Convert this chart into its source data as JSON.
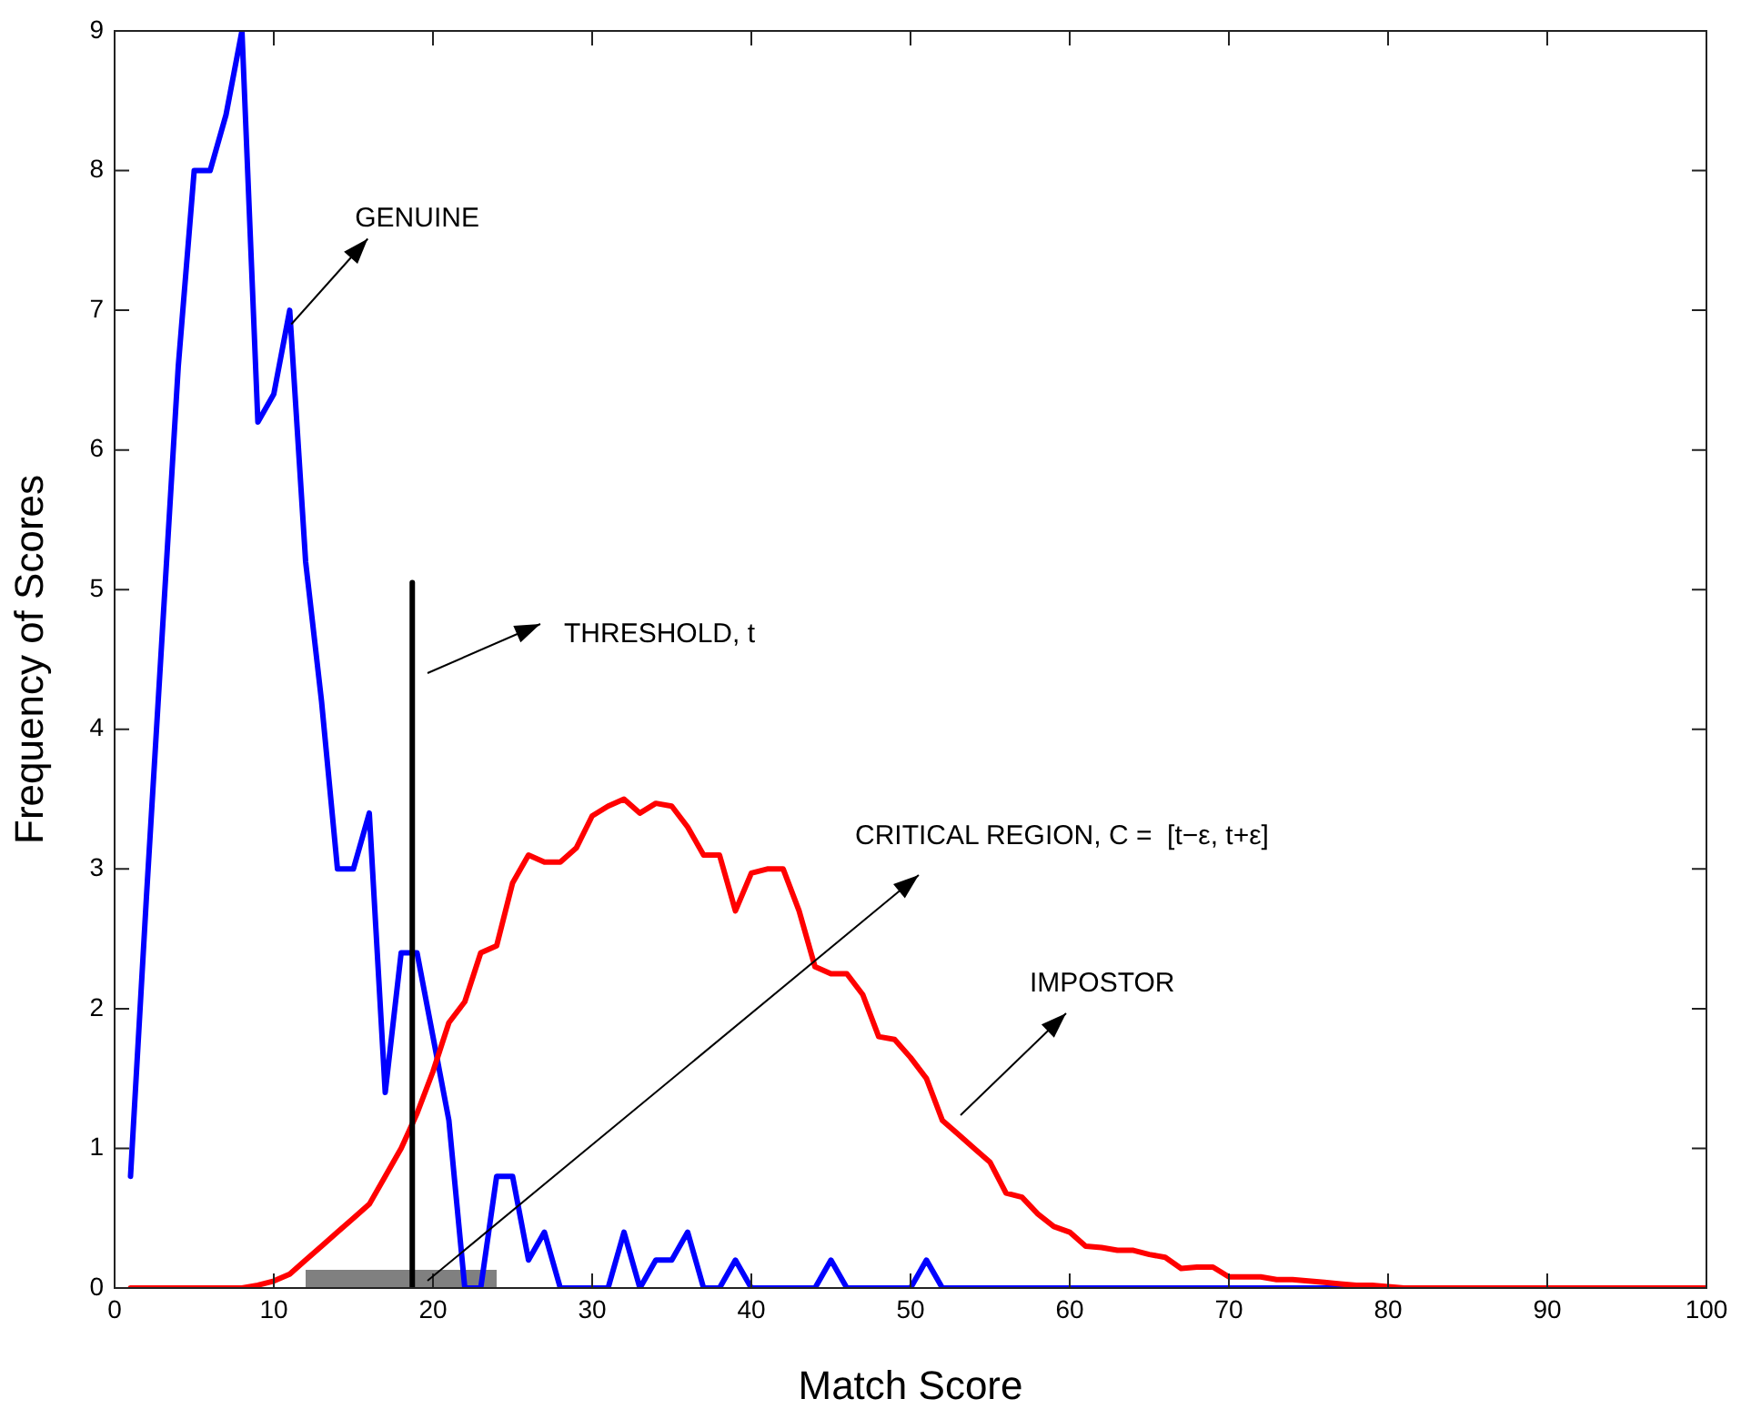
{
  "chart_data": {
    "type": "line",
    "xlabel": "Match Score",
    "ylabel": "Frequency of Scores",
    "xlim": [
      0,
      100
    ],
    "ylim": [
      0,
      9
    ],
    "xticks": [
      0,
      10,
      20,
      30,
      40,
      50,
      60,
      70,
      80,
      90,
      100
    ],
    "yticks": [
      0,
      1,
      2,
      3,
      4,
      5,
      6,
      7,
      8,
      9
    ],
    "grid": false,
    "legend": false,
    "marker": "none",
    "line_style": "solid",
    "x": [
      1,
      2,
      3,
      4,
      5,
      6,
      7,
      8,
      9,
      10,
      11,
      12,
      13,
      14,
      15,
      16,
      17,
      18,
      19,
      20,
      21,
      22,
      23,
      24,
      25,
      26,
      27,
      28,
      29,
      30,
      31,
      32,
      33,
      34,
      35,
      36,
      37,
      38,
      39,
      40,
      41,
      42,
      43,
      44,
      45,
      46,
      47,
      48,
      49,
      50,
      51,
      52,
      53,
      54,
      55,
      56,
      57,
      58,
      59,
      60,
      61,
      62,
      63,
      64,
      65,
      66,
      67,
      68,
      69,
      70,
      71,
      72,
      73,
      74,
      75,
      76,
      77,
      78,
      79,
      80,
      81,
      82,
      83,
      84,
      85,
      86,
      87,
      88,
      89,
      90,
      91,
      92,
      93,
      94,
      95,
      96,
      97,
      98,
      99,
      100
    ],
    "series": [
      {
        "type": "area",
        "color": "#808080",
        "x": [
          12,
          24
        ],
        "values": [
          0.13,
          0.13
        ]
      },
      {
        "color": "#0000ff",
        "values": [
          0.8,
          2.8,
          4.7,
          6.6,
          8,
          8,
          8.4,
          9,
          6.2,
          6.4,
          7,
          5.2,
          4.2,
          3,
          3,
          3.4,
          1.4,
          2.4,
          2.4,
          1.8,
          1.2,
          0,
          0,
          0.8,
          0.8,
          0.2,
          0.4,
          0,
          0,
          0,
          0,
          0.4,
          0,
          0.2,
          0.2,
          0.4,
          0,
          0,
          0.2,
          0,
          0,
          0,
          0,
          0,
          0.2,
          0,
          0,
          0,
          0,
          0,
          0.2,
          0,
          0,
          0,
          0,
          0,
          0,
          0,
          0,
          0,
          0,
          0,
          0,
          0,
          0,
          0,
          0,
          0,
          0,
          0,
          0,
          0,
          0,
          0,
          0,
          0,
          0,
          0,
          null,
          null,
          null,
          null,
          null,
          null,
          null,
          null,
          null,
          null,
          null,
          null,
          null,
          null,
          null,
          null,
          null,
          null,
          null,
          null,
          null,
          null
        ]
      },
      {
        "color": "#ff0000",
        "values": [
          0,
          0,
          0,
          0,
          0,
          0,
          0,
          0,
          0.02,
          0.05,
          0.1,
          0.2,
          0.3,
          0.4,
          0.5,
          0.6,
          0.8,
          1,
          1.25,
          1.55,
          1.9,
          2.05,
          2.4,
          2.45,
          2.9,
          3.1,
          3.05,
          3.05,
          3.15,
          3.38,
          3.45,
          3.5,
          3.4,
          3.47,
          3.45,
          3.3,
          3.1,
          3.1,
          2.7,
          2.97,
          3,
          3,
          2.7,
          2.3,
          2.25,
          2.25,
          2.1,
          1.8,
          1.78,
          1.65,
          1.5,
          1.2,
          1.1,
          1,
          0.9,
          0.68,
          0.65,
          0.53,
          0.44,
          0.4,
          0.3,
          0.29,
          0.27,
          0.27,
          0.24,
          0.22,
          0.14,
          0.15,
          0.15,
          0.08,
          0.08,
          0.08,
          0.06,
          0.06,
          0.05,
          0.04,
          0.03,
          0.02,
          0.02,
          0.01,
          0,
          0,
          0,
          0,
          0,
          0,
          0,
          0,
          0,
          0,
          0,
          0,
          0,
          0,
          0,
          0,
          0,
          0,
          0,
          0
        ]
      },
      {
        "type": "line",
        "color": "#000000",
        "x": [
          18.7,
          18.7
        ],
        "values": [
          0,
          5.05
        ]
      }
    ],
    "annotations": [
      {
        "text": "GENUINE",
        "x": 11.1,
        "y": 6.9
      },
      "THRESHOLD, t",
      "CRITICAL REGION, C =  [t−ε, t+ε]",
      "IMPOSTOR"
    ]
  }
}
